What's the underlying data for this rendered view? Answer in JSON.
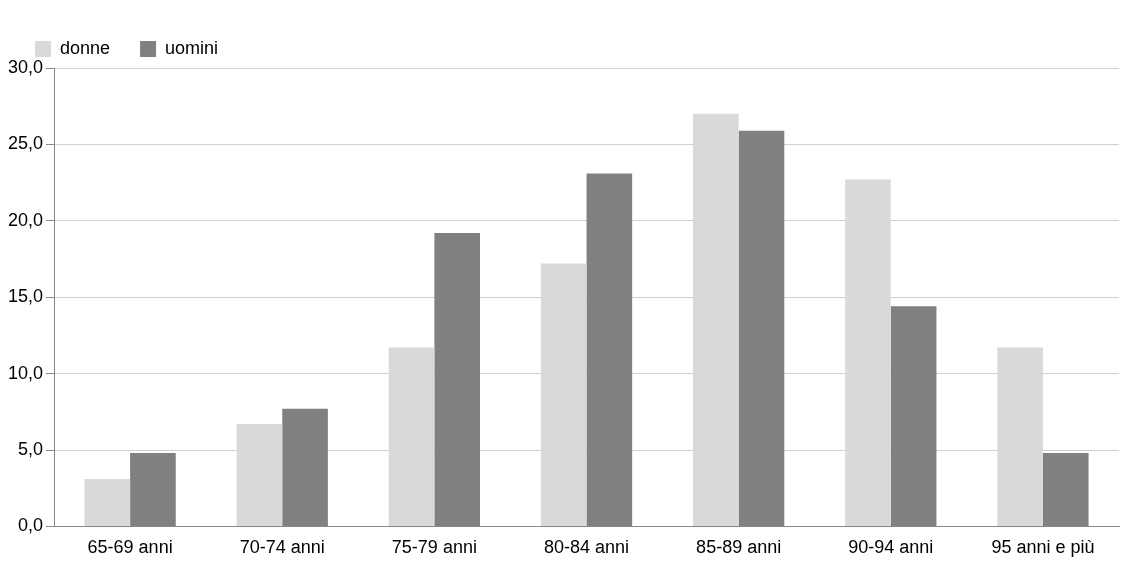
{
  "chart_data": {
    "type": "bar",
    "categories": [
      "65-69 anni",
      "70-74 anni",
      "75-79 anni",
      "80-84 anni",
      "85-89 anni",
      "90-94 anni",
      "95 anni e più"
    ],
    "series": [
      {
        "name": "donne",
        "color": "#d9d9d9",
        "values": [
          3.1,
          6.7,
          11.7,
          17.2,
          27.0,
          22.7,
          11.7
        ]
      },
      {
        "name": "uomini",
        "color": "#808080",
        "values": [
          4.8,
          7.7,
          19.2,
          23.1,
          25.9,
          14.4,
          4.8
        ]
      }
    ],
    "ylim": [
      0,
      30
    ],
    "yticks": [
      {
        "value": 0,
        "label": "0,0"
      },
      {
        "value": 5,
        "label": "5,0"
      },
      {
        "value": 10,
        "label": "10,0"
      },
      {
        "value": 15,
        "label": "15,0"
      },
      {
        "value": 20,
        "label": "20,0"
      },
      {
        "value": 25,
        "label": "25,0"
      },
      {
        "value": 30,
        "label": "30,0"
      }
    ],
    "grid": "y",
    "legend": "top left"
  }
}
